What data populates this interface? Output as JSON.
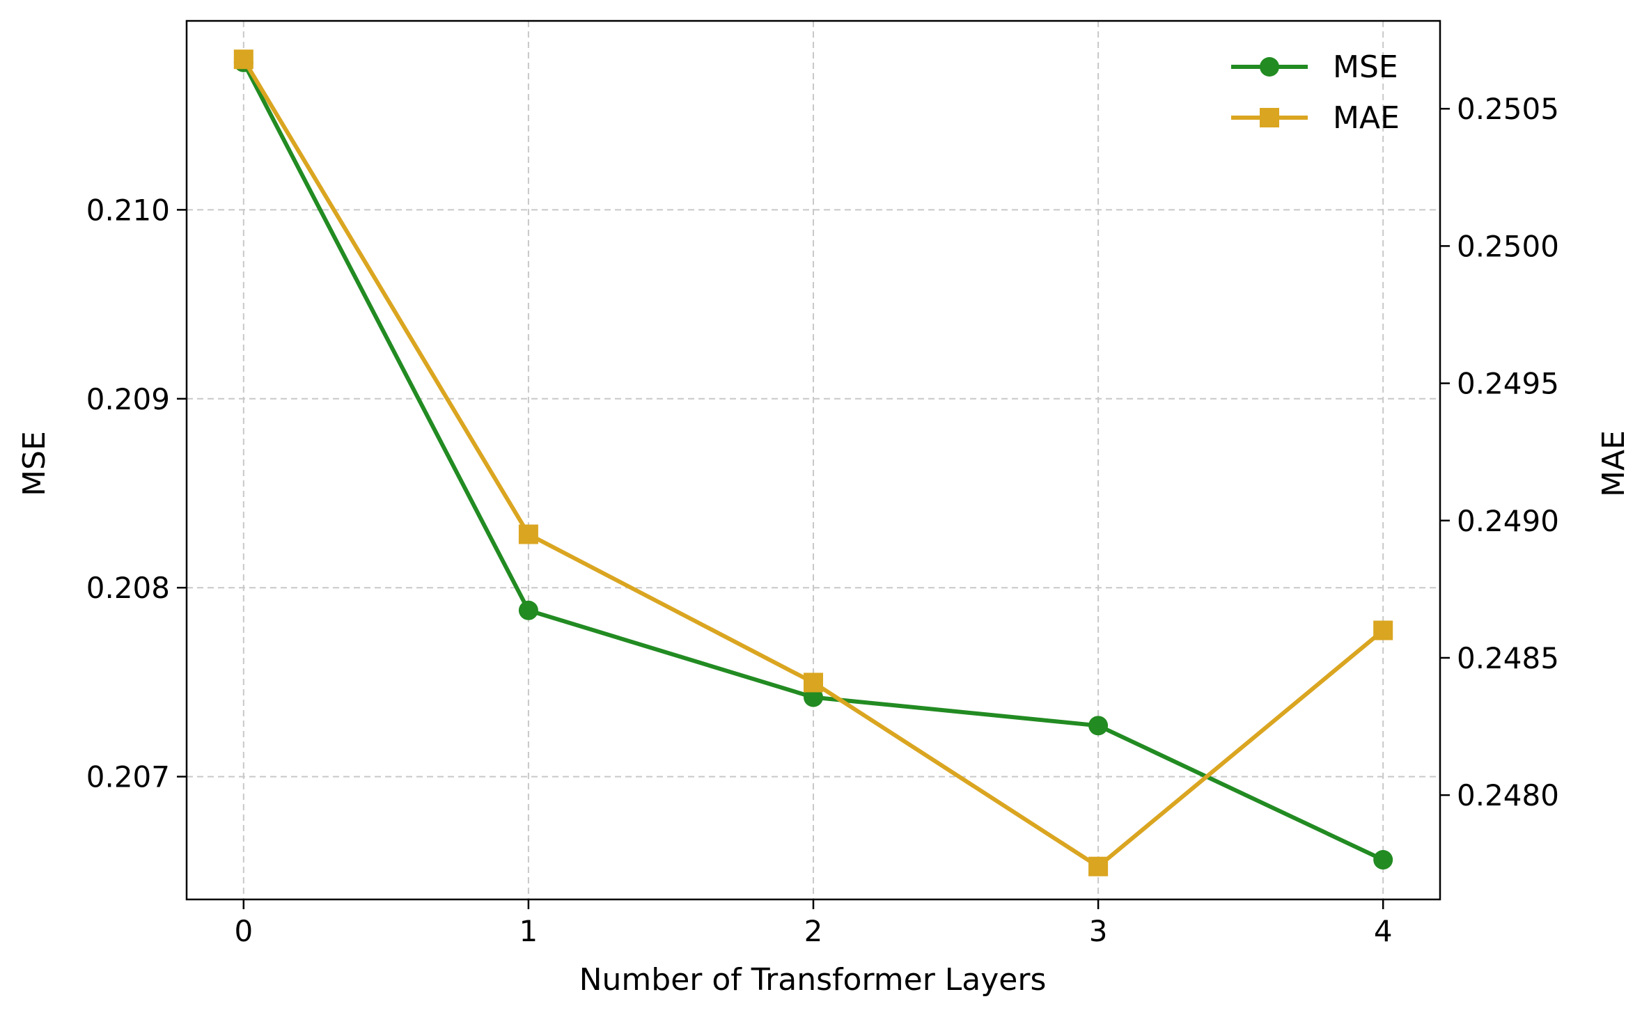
{
  "chart_data": {
    "type": "line",
    "x": [
      0,
      1,
      2,
      3,
      4
    ],
    "xlabel": "Number of Transformer Layers",
    "ylabel_left": "MSE",
    "ylabel_right": "MAE",
    "x_ticks": [
      "0",
      "1",
      "2",
      "3",
      "4"
    ],
    "xlim": [
      -0.2,
      4.2
    ],
    "ylim_left": [
      0.20635,
      0.211
    ],
    "ylim_right": [
      0.24762,
      0.25082
    ],
    "y_ticks_left": [
      {
        "value": 0.207,
        "label": "0.207"
      },
      {
        "value": 0.208,
        "label": "0.208"
      },
      {
        "value": 0.209,
        "label": "0.209"
      },
      {
        "value": 0.21,
        "label": "0.210"
      }
    ],
    "y_ticks_right": [
      {
        "value": 0.248,
        "label": "0.2480"
      },
      {
        "value": 0.2485,
        "label": "0.2485"
      },
      {
        "value": 0.249,
        "label": "0.2490"
      },
      {
        "value": 0.2495,
        "label": "0.2495"
      },
      {
        "value": 0.25,
        "label": "0.2500"
      },
      {
        "value": 0.2505,
        "label": "0.2505"
      }
    ],
    "grid": true,
    "legend_position": "top-right",
    "series": [
      {
        "name": "MSE",
        "axis": "left",
        "marker": "circle",
        "color": "#228B22",
        "values": [
          0.21078,
          0.20788,
          0.20742,
          0.20727,
          0.20656
        ]
      },
      {
        "name": "MAE",
        "axis": "right",
        "marker": "square",
        "color": "#DAA520",
        "values": [
          0.25068,
          0.24895,
          0.24841,
          0.24774,
          0.2486
        ]
      }
    ]
  }
}
